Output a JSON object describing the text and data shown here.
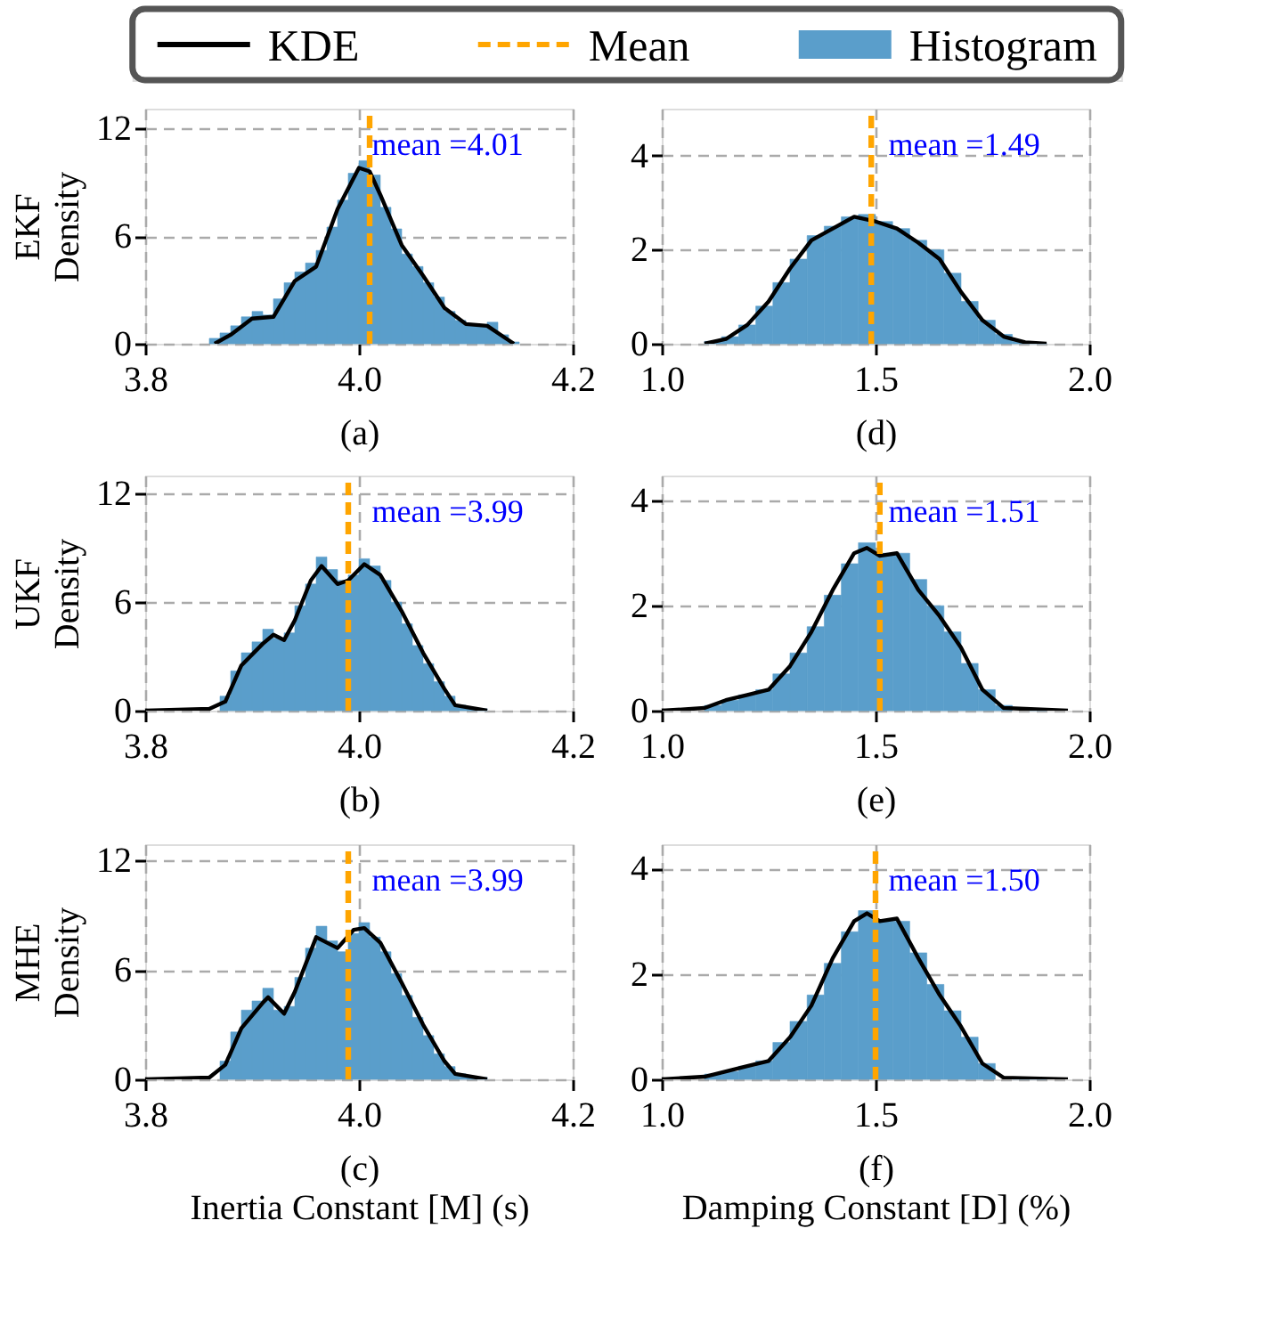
{
  "chart_data": [
    {
      "type": "bar",
      "xlabel": "(a)",
      "ylabel": "EKF Density",
      "xlim": [
        3.8,
        4.2
      ],
      "xticks": [
        {
          "value": 3.8,
          "label": "3.8"
        },
        {
          "value": 4.0,
          "label": "4.0"
        },
        {
          "value": 4.2,
          "label": "4.2"
        }
      ],
      "ylim": [
        0,
        13.1
      ],
      "yticks": [
        0,
        6,
        12
      ],
      "grid": true,
      "legend": "top",
      "series": [
        {
          "name": "KDE",
          "type": "line",
          "color": "#000000",
          "x": [
            3.865,
            3.88,
            3.9,
            3.92,
            3.94,
            3.96,
            3.98,
            4.0,
            4.01,
            4.02,
            4.04,
            4.06,
            4.08,
            4.1,
            4.12,
            4.14,
            4.145
          ],
          "values": [
            0,
            0.5,
            1.4,
            1.5,
            3.5,
            4.3,
            7.5,
            9.8,
            9.6,
            8.3,
            5.5,
            3.8,
            2.0,
            1.1,
            1.0,
            0.2,
            0
          ]
        },
        {
          "name": "Mean",
          "type": "line",
          "color": "#ffa500",
          "line_style": "dashed",
          "x": [
            4.01,
            4.01
          ],
          "values": [
            0,
            13.1
          ]
        },
        {
          "name": "Histogram",
          "color": "#5a9ecb",
          "x": [
            3.865,
            3.875,
            3.885,
            3.895,
            3.905,
            3.915,
            3.925,
            3.935,
            3.945,
            3.955,
            3.965,
            3.975,
            3.985,
            3.995,
            4.005,
            4.015,
            4.025,
            4.035,
            4.045,
            4.055,
            4.065,
            4.075,
            4.085,
            4.095,
            4.105,
            4.115,
            4.125,
            4.135,
            4.145
          ],
          "values": [
            0.3,
            0.6,
            1.0,
            1.5,
            1.8,
            1.6,
            2.5,
            3.4,
            4.0,
            4.5,
            5.2,
            6.5,
            8.0,
            9.5,
            10.2,
            9.4,
            7.6,
            6.4,
            5.0,
            4.3,
            3.4,
            2.6,
            1.8,
            1.3,
            1.1,
            1.0,
            1.2,
            0.5,
            0.1
          ]
        }
      ],
      "annotations": [
        "mean =4.01"
      ]
    },
    {
      "type": "bar",
      "xlabel": "(d)",
      "xlim": [
        1.0,
        2.0
      ],
      "xticks": [
        {
          "value": 1.0,
          "label": "1.0"
        },
        {
          "value": 1.5,
          "label": "1.5"
        },
        {
          "value": 2.0,
          "label": "2.0"
        }
      ],
      "ylim": [
        0,
        5
      ],
      "yticks": [
        0,
        2,
        4
      ],
      "grid": true,
      "series": [
        {
          "type": "line",
          "color": "#000000",
          "x": [
            1.1,
            1.15,
            1.2,
            1.25,
            1.3,
            1.35,
            1.4,
            1.45,
            1.5,
            1.55,
            1.6,
            1.65,
            1.7,
            1.75,
            1.8,
            1.85,
            1.9
          ],
          "values": [
            0,
            0.1,
            0.4,
            0.9,
            1.6,
            2.2,
            2.45,
            2.7,
            2.6,
            2.45,
            2.15,
            1.8,
            1.1,
            0.5,
            0.15,
            0.03,
            0
          ]
        },
        {
          "type": "line",
          "color": "#ffa500",
          "line_style": "dashed",
          "x": [
            1.49,
            1.49
          ],
          "values": [
            0,
            5
          ]
        },
        {
          "color": "#5a9ecb",
          "x": [
            1.12,
            1.16,
            1.2,
            1.24,
            1.28,
            1.32,
            1.36,
            1.4,
            1.44,
            1.48,
            1.52,
            1.56,
            1.6,
            1.64,
            1.68,
            1.72,
            1.76,
            1.8,
            1.84,
            1.88
          ],
          "values": [
            0.05,
            0.15,
            0.4,
            0.8,
            1.3,
            1.8,
            2.3,
            2.5,
            2.7,
            2.75,
            2.6,
            2.45,
            2.2,
            2.0,
            1.5,
            0.9,
            0.5,
            0.2,
            0.05,
            0.02
          ]
        }
      ],
      "annotations": [
        "mean =1.49"
      ]
    },
    {
      "type": "bar",
      "xlabel": "(b)",
      "ylabel": "UKF Density",
      "xlim": [
        3.8,
        4.2
      ],
      "xticks": [
        {
          "value": 3.8,
          "label": "3.8"
        },
        {
          "value": 4.0,
          "label": "4.0"
        },
        {
          "value": 4.2,
          "label": "4.2"
        }
      ],
      "ylim": [
        0,
        13
      ],
      "yticks": [
        0,
        6,
        12
      ],
      "grid": true,
      "series": [
        {
          "type": "line",
          "color": "#000000",
          "x": [
            3.8,
            3.86,
            3.875,
            3.89,
            3.91,
            3.92,
            3.93,
            3.94,
            3.955,
            3.965,
            3.98,
            3.99,
            4.005,
            4.02,
            4.04,
            4.06,
            4.08,
            4.09,
            4.12
          ],
          "values": [
            0,
            0.1,
            0.5,
            2.5,
            3.7,
            4.2,
            3.9,
            5.0,
            7.2,
            8.0,
            7.0,
            7.2,
            8.1,
            7.5,
            5.5,
            3.2,
            1.2,
            0.3,
            0
          ]
        },
        {
          "type": "line",
          "color": "#ffa500",
          "line_style": "dashed",
          "x": [
            3.99,
            3.99
          ],
          "values": [
            0,
            13
          ]
        },
        {
          "color": "#5a9ecb",
          "x": [
            3.875,
            3.885,
            3.895,
            3.905,
            3.915,
            3.925,
            3.935,
            3.945,
            3.955,
            3.965,
            3.975,
            3.985,
            3.995,
            4.005,
            4.015,
            4.025,
            4.035,
            4.045,
            4.055,
            4.065,
            4.075,
            4.085,
            4.095,
            4.105,
            4.115
          ],
          "values": [
            0.8,
            2.2,
            3.2,
            3.8,
            4.5,
            4.0,
            4.3,
            5.8,
            7.0,
            8.5,
            7.8,
            7.2,
            7.5,
            8.4,
            8.0,
            7.2,
            6.0,
            4.8,
            3.6,
            2.6,
            1.6,
            0.8,
            0.3,
            0.1,
            0.1
          ]
        }
      ],
      "annotations": [
        "mean =3.99"
      ]
    },
    {
      "type": "bar",
      "xlabel": "(e)",
      "xlim": [
        1.0,
        2.0
      ],
      "xticks": [
        {
          "value": 1.0,
          "label": "1.0"
        },
        {
          "value": 1.5,
          "label": "1.5"
        },
        {
          "value": 2.0,
          "label": "2.0"
        }
      ],
      "ylim": [
        0,
        4.48
      ],
      "yticks": [
        0,
        2,
        4
      ],
      "grid": true,
      "series": [
        {
          "type": "line",
          "color": "#000000",
          "x": [
            1.0,
            1.1,
            1.15,
            1.2,
            1.25,
            1.3,
            1.35,
            1.4,
            1.45,
            1.48,
            1.51,
            1.55,
            1.6,
            1.65,
            1.7,
            1.75,
            1.8,
            1.95
          ],
          "values": [
            0,
            0.05,
            0.2,
            0.3,
            0.4,
            0.85,
            1.5,
            2.3,
            3.0,
            3.1,
            2.95,
            3.0,
            2.3,
            1.8,
            1.2,
            0.4,
            0.05,
            0
          ]
        },
        {
          "type": "line",
          "color": "#ffa500",
          "line_style": "dashed",
          "x": [
            1.51,
            1.51
          ],
          "values": [
            0,
            4.48
          ]
        },
        {
          "color": "#5a9ecb",
          "x": [
            1.12,
            1.16,
            1.2,
            1.24,
            1.28,
            1.32,
            1.36,
            1.4,
            1.44,
            1.48,
            1.52,
            1.56,
            1.6,
            1.64,
            1.68,
            1.72,
            1.76,
            1.8,
            1.84,
            1.88
          ],
          "values": [
            0.1,
            0.2,
            0.3,
            0.4,
            0.7,
            1.1,
            1.6,
            2.2,
            2.8,
            3.2,
            3.0,
            3.0,
            2.5,
            2.0,
            1.5,
            0.9,
            0.4,
            0.1,
            null,
            0.01
          ]
        }
      ],
      "annotations": [
        "mean =1.51"
      ]
    },
    {
      "type": "bar",
      "xlabel": "(c)",
      "ylabel": "MHE Density",
      "xlim": [
        3.8,
        4.2
      ],
      "xticks": [
        {
          "value": 3.8,
          "label": "3.8"
        },
        {
          "value": 4.0,
          "label": "4.0"
        },
        {
          "value": 4.2,
          "label": "4.2"
        }
      ],
      "ylim": [
        0,
        12.9
      ],
      "yticks": [
        0,
        6,
        12
      ],
      "grid": true,
      "series": [
        {
          "type": "line",
          "color": "#000000",
          "x": [
            3.8,
            3.86,
            3.875,
            3.89,
            3.91,
            3.915,
            3.93,
            3.94,
            3.96,
            3.98,
            3.995,
            4.005,
            4.02,
            4.04,
            4.06,
            4.08,
            4.09,
            4.12
          ],
          "values": [
            0,
            0.1,
            0.8,
            2.8,
            4.2,
            4.5,
            3.6,
            4.8,
            7.8,
            7.2,
            8.2,
            8.3,
            7.5,
            5.3,
            3.0,
            1.0,
            0.3,
            0
          ]
        },
        {
          "type": "line",
          "color": "#ffa500",
          "line_style": "dashed",
          "x": [
            3.99,
            3.99
          ],
          "values": [
            0,
            12.9
          ]
        },
        {
          "color": "#5a9ecb",
          "x": [
            3.875,
            3.885,
            3.895,
            3.905,
            3.915,
            3.925,
            3.935,
            3.945,
            3.955,
            3.965,
            3.975,
            3.985,
            3.995,
            4.005,
            4.015,
            4.025,
            4.035,
            4.045,
            4.055,
            4.065,
            4.075,
            4.085,
            4.095,
            4.105,
            4.115
          ],
          "values": [
            1.0,
            2.6,
            3.8,
            4.3,
            5.0,
            3.8,
            4.0,
            5.6,
            7.2,
            8.4,
            7.6,
            7.0,
            8.0,
            8.6,
            7.8,
            7.0,
            5.8,
            4.6,
            3.4,
            2.4,
            1.4,
            0.7,
            0.3,
            0.1,
            0.1
          ]
        }
      ],
      "annotations": [
        "mean =3.99",
        "Inertia Constant [M] (s)"
      ]
    },
    {
      "type": "bar",
      "xlabel": "(f)",
      "xlim": [
        1.0,
        2.0
      ],
      "xticks": [
        {
          "value": 1.0,
          "label": "1.0"
        },
        {
          "value": 1.5,
          "label": "1.5"
        },
        {
          "value": 2.0,
          "label": "2.0"
        }
      ],
      "ylim": [
        0,
        4.46
      ],
      "yticks": [
        0,
        2,
        4
      ],
      "grid": true,
      "series": [
        {
          "type": "line",
          "color": "#000000",
          "x": [
            1.0,
            1.1,
            1.15,
            1.2,
            1.25,
            1.3,
            1.35,
            1.4,
            1.45,
            1.48,
            1.51,
            1.55,
            1.6,
            1.65,
            1.7,
            1.75,
            1.8,
            1.95
          ],
          "values": [
            0,
            0.05,
            0.15,
            0.25,
            0.35,
            0.8,
            1.4,
            2.3,
            3.0,
            3.15,
            3.0,
            3.05,
            2.3,
            1.6,
            1.0,
            0.3,
            0.03,
            0
          ]
        },
        {
          "type": "line",
          "color": "#ffa500",
          "line_style": "dashed",
          "x": [
            1.5,
            1.5
          ],
          "values": [
            0,
            4.46
          ]
        },
        {
          "color": "#5a9ecb",
          "x": [
            1.12,
            1.16,
            1.2,
            1.24,
            1.28,
            1.32,
            1.36,
            1.4,
            1.44,
            1.48,
            1.52,
            1.56,
            1.6,
            1.64,
            1.68,
            1.72,
            1.76,
            1.8,
            1.84,
            1.88
          ],
          "values": [
            0.1,
            0.15,
            0.25,
            0.35,
            0.7,
            1.1,
            1.6,
            2.2,
            2.8,
            3.2,
            3.0,
            3.0,
            2.4,
            1.8,
            1.3,
            0.8,
            0.3,
            null,
            0.02,
            0.01
          ]
        }
      ],
      "annotations": [
        "mean =1.50",
        "Damping Constant [D] (%)"
      ]
    }
  ]
}
